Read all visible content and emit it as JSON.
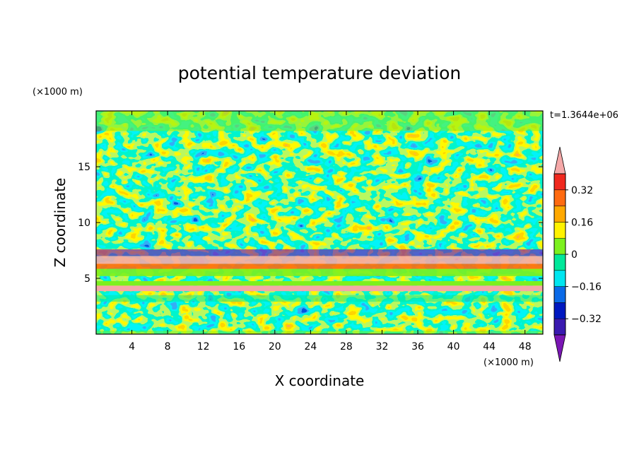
{
  "chart_data": {
    "type": "heatmap",
    "title": "potential temperature deviation",
    "xlabel": "X coordinate",
    "ylabel": "Z coordinate",
    "x_unit": "(×1000 m)",
    "y_unit": "(×1000 m)",
    "time_label": "t=1.3644e+06",
    "xlim": [
      0,
      50
    ],
    "ylim": [
      0,
      20
    ],
    "x_ticks": [
      4,
      8,
      12,
      16,
      20,
      24,
      28,
      32,
      36,
      40,
      44,
      48
    ],
    "y_ticks": [
      5,
      10,
      15
    ],
    "colorbar": {
      "levels": [
        -0.4,
        -0.32,
        -0.24,
        -0.16,
        -0.08,
        0,
        0.08,
        0.16,
        0.24,
        0.32,
        0.4
      ],
      "tick_labels": [
        "0.32",
        "0.16",
        "0",
        "−0.16",
        "−0.32"
      ],
      "tick_values": [
        0.32,
        0.16,
        0,
        -0.16,
        -0.32
      ],
      "colors": [
        "#7a16b4",
        "#3a1ab0",
        "#0018c0",
        "#0a6ae8",
        "#00e6f0",
        "#00e89a",
        "#7cf01e",
        "#fff200",
        "#ffa800",
        "#ff6a10",
        "#f0281e",
        "#f5a8a8"
      ],
      "extend": "both"
    }
  }
}
